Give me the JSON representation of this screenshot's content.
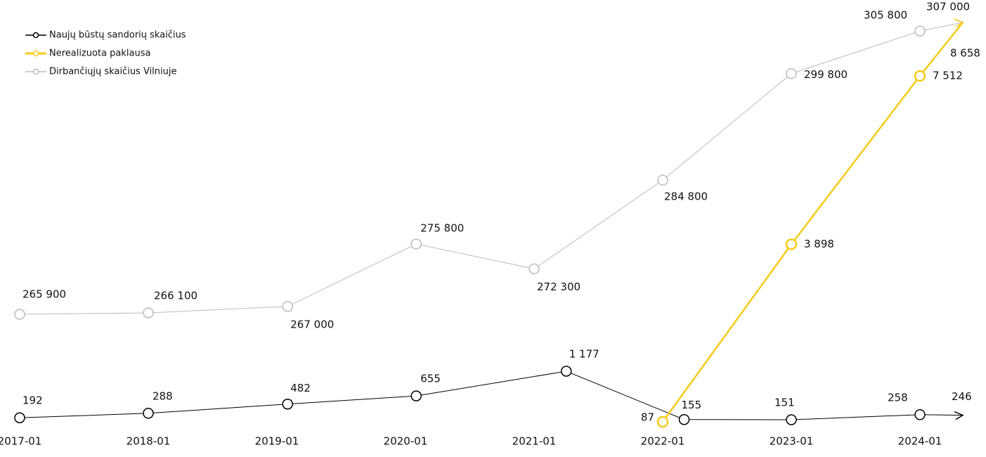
{
  "chart_data": {
    "type": "line",
    "xticks": [
      "2017-01",
      "2018-01",
      "2019-01",
      "2020-01",
      "2021-01",
      "2022-01",
      "2023-01",
      "2024-01"
    ],
    "series": [
      {
        "name": "Naujų būstų sandorių skaičius",
        "color": "#000000",
        "x": [
          "2017-01",
          "2018-01",
          "2019-02",
          "2020-02",
          "2021-04",
          "2022-03",
          "2023-01",
          "2024-01",
          "2024-05"
        ],
        "values": [
          192,
          288,
          482,
          655,
          1177,
          155,
          151,
          258,
          246
        ],
        "value_labels": [
          "192",
          "288",
          "482",
          "655",
          "1 177",
          "155",
          "151",
          "258",
          "246"
        ]
      },
      {
        "name": "Nerealizuota paklausa",
        "color": "#f5cb1a",
        "x": [
          "2022-01",
          "2023-01",
          "2024-01",
          "2024-05"
        ],
        "values": [
          87,
          3898,
          7512,
          8658
        ],
        "value_labels": [
          "87",
          "3 898",
          "7 512",
          "8 658"
        ]
      },
      {
        "name": "Dirbančiųjų skaičius Vilniuje",
        "color": "#bbbbbb",
        "x": [
          "2017-01",
          "2018-01",
          "2019-02",
          "2020-02",
          "2021-01",
          "2022-01",
          "2023-01",
          "2024-01",
          "2024-05"
        ],
        "values": [
          265900,
          266100,
          267000,
          275800,
          272300,
          284800,
          299800,
          305800,
          307000
        ],
        "value_labels": [
          "265 900",
          "266 100",
          "267 000",
          "275 800",
          "272 300",
          "284 800",
          "299 800",
          "305 800",
          "307 000"
        ]
      }
    ]
  }
}
